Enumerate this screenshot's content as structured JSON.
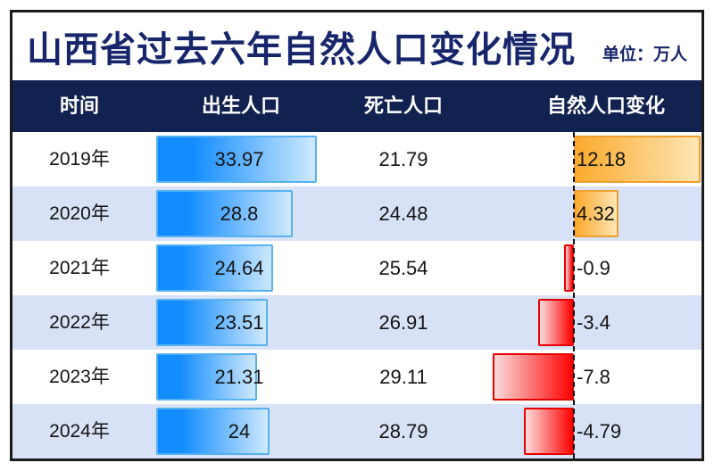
{
  "title": "山西省过去六年自然人口变化情况",
  "unit_label": "单位：万人",
  "columns": {
    "time": "时间",
    "birth": "出生人口",
    "death": "死亡人口",
    "change": "自然人口变化"
  },
  "rows": [
    {
      "year": "2019年",
      "birth": "33.97",
      "death": "21.79",
      "change": "12.18"
    },
    {
      "year": "2020年",
      "birth": "28.8",
      "death": "24.48",
      "change": "4.32"
    },
    {
      "year": "2021年",
      "birth": "24.64",
      "death": "25.54",
      "change": "-0.9"
    },
    {
      "year": "2022年",
      "birth": "23.51",
      "death": "26.91",
      "change": "-3.4"
    },
    {
      "year": "2023年",
      "birth": "21.31",
      "death": "29.11",
      "change": "-7.8"
    },
    {
      "year": "2024年",
      "birth": "24",
      "death": "28.79",
      "change": "-4.79"
    }
  ],
  "colors": {
    "frame": "#1b1b1b",
    "title_text": "#17266b",
    "header_bg": "#122250",
    "row_alt": "#d8e2f7",
    "text": "#141414",
    "axis": "#111111",
    "bar_blue_start": "#128cff",
    "bar_blue_end": "#cfe9fc",
    "bar_blue_border": "#55b1f1",
    "bar_orange_start": "#fbaa2e",
    "bar_orange_end": "#fde6b4",
    "bar_orange_border": "#f09e2e",
    "bar_red_start": "#fbdcdc",
    "bar_red_end": "#ff0202",
    "bar_red_border": "#e60000"
  },
  "chart_data": {
    "type": "bar",
    "title": "山西省过去六年自然人口变化情况",
    "unit": "万人",
    "categories": [
      "2019年",
      "2020年",
      "2021年",
      "2022年",
      "2023年",
      "2024年"
    ],
    "series": [
      {
        "name": "出生人口",
        "values": [
          33.97,
          28.8,
          24.64,
          23.51,
          21.31,
          24
        ]
      },
      {
        "name": "死亡人口",
        "values": [
          21.79,
          24.48,
          25.54,
          26.91,
          29.11,
          28.79
        ]
      },
      {
        "name": "自然人口变化",
        "values": [
          12.18,
          4.32,
          -0.9,
          -3.4,
          -7.8,
          -4.79
        ]
      }
    ],
    "layout": "table with in-cell bars; 出生人口 shown as blue gradient bars, 自然人口变化 shown as orange bars right of a dashed zero axis when positive and red bars left of it when negative; rows alternate white and light blue",
    "legend_position": "none",
    "grid": false
  }
}
